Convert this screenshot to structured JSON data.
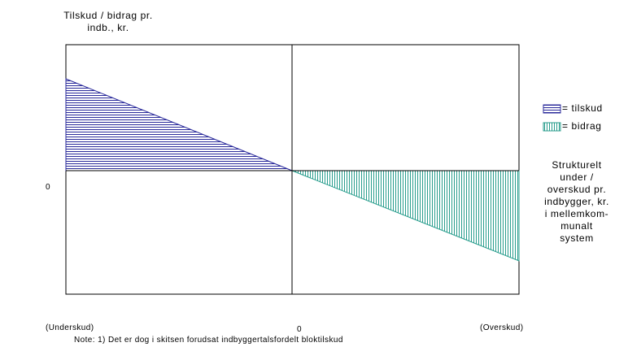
{
  "y_axis_title_line1": "Tilskud / bidrag pr.",
  "y_axis_title_line2": "indb., kr.",
  "y_zero_label": "0",
  "x_zero_label": "0",
  "x_left_label": "(Underskud)",
  "x_right_label": "(Overskud)",
  "note": "Note: 1) Det er dog i skitsen forudsat indbyggertalsfordelt bloktilskud",
  "legend": [
    {
      "label": "= tilskud",
      "color": "#2b2b9b",
      "pattern": "horizontal-lines"
    },
    {
      "label": "= bidrag",
      "color": "#2a9e8e",
      "pattern": "vertical-lines"
    }
  ],
  "x_axis_title_lines": [
    "Strukturelt",
    "under /",
    "overskud pr.",
    "indbygger, kr.",
    "i mellemkom-",
    "munalt",
    "system"
  ],
  "colors": {
    "tilskud": "#2b2b9b",
    "bidrag": "#2a9e8e",
    "frame": "#000000"
  }
}
